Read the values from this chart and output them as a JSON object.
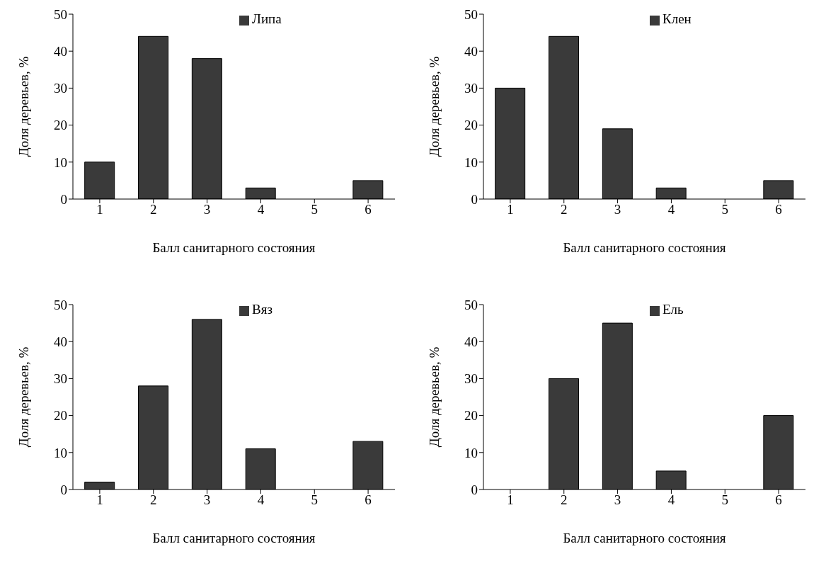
{
  "chart_data": [
    {
      "type": "bar",
      "categories": [
        "1",
        "2",
        "3",
        "4",
        "5",
        "6"
      ],
      "series": [
        {
          "name": "Липа",
          "color": "#3a3a3a",
          "values": [
            10,
            44,
            38,
            3,
            0,
            5
          ]
        }
      ],
      "xlabel": "Балл санитарного состояния",
      "ylabel": "Доля деревьев, %",
      "ylim": [
        0,
        50
      ],
      "yticks": [
        0,
        10,
        20,
        30,
        40,
        50
      ],
      "grid": false,
      "legend": "top right"
    },
    {
      "type": "bar",
      "categories": [
        "1",
        "2",
        "3",
        "4",
        "5",
        "6"
      ],
      "series": [
        {
          "name": "Клен",
          "color": "#3a3a3a",
          "values": [
            30,
            44,
            19,
            3,
            0,
            5
          ]
        }
      ],
      "xlabel": "Балл санитарного состояния",
      "ylabel": "Доля деревьев, %",
      "ylim": [
        0,
        50
      ],
      "yticks": [
        0,
        10,
        20,
        30,
        40,
        50
      ],
      "grid": false,
      "legend": "top right"
    },
    {
      "type": "bar",
      "categories": [
        "1",
        "2",
        "3",
        "4",
        "5",
        "6"
      ],
      "series": [
        {
          "name": "Вяз",
          "color": "#3a3a3a",
          "values": [
            2,
            28,
            46,
            11,
            0,
            13
          ]
        }
      ],
      "xlabel": "Балл санитарного состояния",
      "ylabel": "Доля деревьев, %",
      "ylim": [
        0,
        50
      ],
      "yticks": [
        0,
        10,
        20,
        30,
        40,
        50
      ],
      "grid": false,
      "legend": "top right"
    },
    {
      "type": "bar",
      "categories": [
        "1",
        "2",
        "3",
        "4",
        "5",
        "6"
      ],
      "series": [
        {
          "name": "Ель",
          "color": "#3a3a3a",
          "values": [
            0,
            30,
            45,
            5,
            0,
            20
          ]
        }
      ],
      "xlabel": "Балл санитарного состояния",
      "ylabel": "Доля деревьев, %",
      "ylim": [
        0,
        50
      ],
      "yticks": [
        0,
        10,
        20,
        30,
        40,
        50
      ],
      "grid": false,
      "legend": "top right"
    }
  ]
}
